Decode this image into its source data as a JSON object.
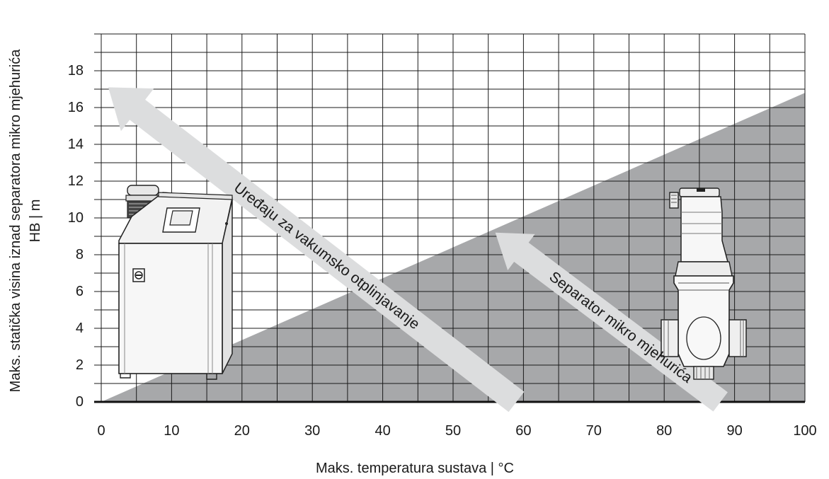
{
  "chart_data": {
    "type": "area",
    "xlabel": "Maks. temperatura sustava | °C",
    "ylabel_line1": "Maks. statička visina iznad separatora mikro mjehurića",
    "ylabel_line2": "HB | m",
    "xlim": [
      0,
      100
    ],
    "ylim": [
      0,
      20
    ],
    "x_ticks": [
      "0",
      "10",
      "20",
      "30",
      "40",
      "50",
      "60",
      "70",
      "80",
      "90",
      "100"
    ],
    "y_ticks": [
      "0",
      "2",
      "4",
      "6",
      "8",
      "10",
      "12",
      "14",
      "16",
      "18"
    ],
    "grid": true,
    "region": {
      "x": [
        0,
        100
      ],
      "y": [
        0,
        16.8
      ],
      "color": "#a7a8aa"
    },
    "arrows": [
      {
        "label": "Uređaju za vakumsko otplinjavanje",
        "from": [
          59,
          0
        ],
        "to": [
          1,
          17.1
        ]
      },
      {
        "label": "Separator mikro mjehurića",
        "from": [
          88,
          0
        ],
        "to": [
          56,
          9.2
        ]
      }
    ],
    "arrow_color": "#dcddde",
    "gridline_color": "#1a1a1a"
  },
  "illustrations": [
    {
      "name": "vacuum-degasser-unit-illustration"
    },
    {
      "name": "micro-bubble-separator-illustration"
    }
  ]
}
